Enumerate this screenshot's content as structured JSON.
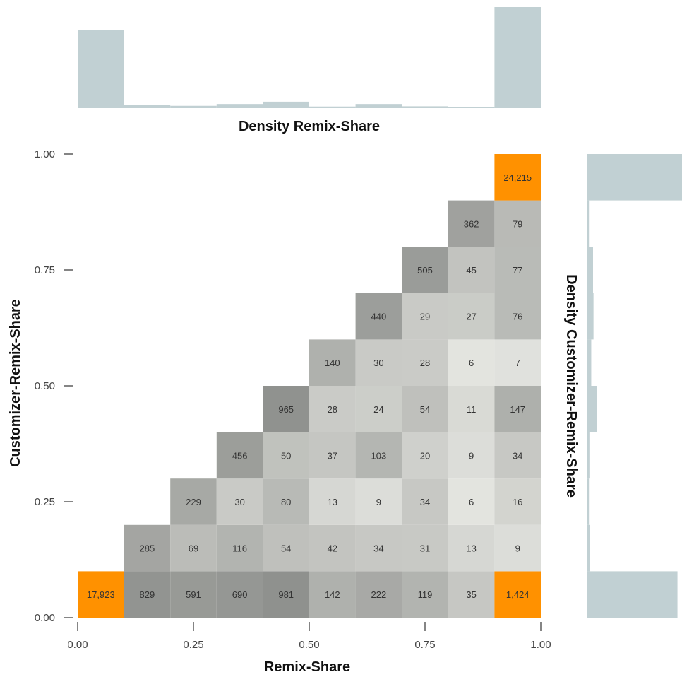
{
  "chart_data": {
    "type": "heatmap",
    "xlabel": "Remix-Share",
    "ylabel": "Customizer-Remix-Share",
    "top_hist_label": "Density Remix-Share",
    "right_hist_label": "Density Customizer-Remix-Share",
    "xlim": [
      0,
      1
    ],
    "ylim": [
      0,
      1
    ],
    "x_ticks": [
      "0.00",
      "0.25",
      "0.50",
      "0.75",
      "1.00"
    ],
    "y_ticks": [
      "0.00",
      "0.25",
      "0.50",
      "0.75",
      "1.00"
    ],
    "bins": 10,
    "cells": [
      {
        "col": 0,
        "row": 0,
        "count": 17923,
        "label": "17,923"
      },
      {
        "col": 1,
        "row": 0,
        "count": 829,
        "label": "829"
      },
      {
        "col": 2,
        "row": 0,
        "count": 591,
        "label": "591"
      },
      {
        "col": 3,
        "row": 0,
        "count": 690,
        "label": "690"
      },
      {
        "col": 4,
        "row": 0,
        "count": 981,
        "label": "981"
      },
      {
        "col": 5,
        "row": 0,
        "count": 142,
        "label": "142"
      },
      {
        "col": 6,
        "row": 0,
        "count": 222,
        "label": "222"
      },
      {
        "col": 7,
        "row": 0,
        "count": 119,
        "label": "119"
      },
      {
        "col": 8,
        "row": 0,
        "count": 35,
        "label": "35"
      },
      {
        "col": 9,
        "row": 0,
        "count": 1424,
        "label": "1,424"
      },
      {
        "col": 1,
        "row": 1,
        "count": 285,
        "label": "285"
      },
      {
        "col": 2,
        "row": 1,
        "count": 69,
        "label": "69"
      },
      {
        "col": 3,
        "row": 1,
        "count": 116,
        "label": "116"
      },
      {
        "col": 4,
        "row": 1,
        "count": 54,
        "label": "54"
      },
      {
        "col": 5,
        "row": 1,
        "count": 42,
        "label": "42"
      },
      {
        "col": 6,
        "row": 1,
        "count": 34,
        "label": "34"
      },
      {
        "col": 7,
        "row": 1,
        "count": 31,
        "label": "31"
      },
      {
        "col": 8,
        "row": 1,
        "count": 13,
        "label": "13"
      },
      {
        "col": 9,
        "row": 1,
        "count": 9,
        "label": "9"
      },
      {
        "col": 2,
        "row": 2,
        "count": 229,
        "label": "229"
      },
      {
        "col": 3,
        "row": 2,
        "count": 30,
        "label": "30"
      },
      {
        "col": 4,
        "row": 2,
        "count": 80,
        "label": "80"
      },
      {
        "col": 5,
        "row": 2,
        "count": 13,
        "label": "13"
      },
      {
        "col": 6,
        "row": 2,
        "count": 9,
        "label": "9"
      },
      {
        "col": 7,
        "row": 2,
        "count": 34,
        "label": "34"
      },
      {
        "col": 8,
        "row": 2,
        "count": 6,
        "label": "6"
      },
      {
        "col": 9,
        "row": 2,
        "count": 16,
        "label": "16"
      },
      {
        "col": 3,
        "row": 3,
        "count": 456,
        "label": "456"
      },
      {
        "col": 4,
        "row": 3,
        "count": 50,
        "label": "50"
      },
      {
        "col": 5,
        "row": 3,
        "count": 37,
        "label": "37"
      },
      {
        "col": 6,
        "row": 3,
        "count": 103,
        "label": "103"
      },
      {
        "col": 7,
        "row": 3,
        "count": 20,
        "label": "20"
      },
      {
        "col": 8,
        "row": 3,
        "count": 9,
        "label": "9"
      },
      {
        "col": 9,
        "row": 3,
        "count": 34,
        "label": "34"
      },
      {
        "col": 4,
        "row": 4,
        "count": 965,
        "label": "965"
      },
      {
        "col": 5,
        "row": 4,
        "count": 28,
        "label": "28"
      },
      {
        "col": 6,
        "row": 4,
        "count": 24,
        "label": "24"
      },
      {
        "col": 7,
        "row": 4,
        "count": 54,
        "label": "54"
      },
      {
        "col": 8,
        "row": 4,
        "count": 11,
        "label": "11"
      },
      {
        "col": 9,
        "row": 4,
        "count": 147,
        "label": "147"
      },
      {
        "col": 5,
        "row": 5,
        "count": 140,
        "label": "140"
      },
      {
        "col": 6,
        "row": 5,
        "count": 30,
        "label": "30"
      },
      {
        "col": 7,
        "row": 5,
        "count": 28,
        "label": "28"
      },
      {
        "col": 8,
        "row": 5,
        "count": 6,
        "label": "6"
      },
      {
        "col": 9,
        "row": 5,
        "count": 7,
        "label": "7"
      },
      {
        "col": 6,
        "row": 6,
        "count": 440,
        "label": "440"
      },
      {
        "col": 7,
        "row": 6,
        "count": 29,
        "label": "29"
      },
      {
        "col": 8,
        "row": 6,
        "count": 27,
        "label": "27"
      },
      {
        "col": 9,
        "row": 6,
        "count": 76,
        "label": "76"
      },
      {
        "col": 7,
        "row": 7,
        "count": 505,
        "label": "505"
      },
      {
        "col": 8,
        "row": 7,
        "count": 45,
        "label": "45"
      },
      {
        "col": 9,
        "row": 7,
        "count": 77,
        "label": "77"
      },
      {
        "col": 8,
        "row": 8,
        "count": 362,
        "label": "362"
      },
      {
        "col": 9,
        "row": 8,
        "count": 79,
        "label": "79"
      },
      {
        "col": 9,
        "row": 9,
        "count": 24215,
        "label": "24,215"
      }
    ],
    "top_hist_density": [
      3.4,
      0.15,
      0.1,
      0.18,
      0.28,
      0.07,
      0.18,
      0.08,
      0.06,
      4.4
    ],
    "right_hist_density": [
      2.0,
      0.07,
      0.05,
      0.06,
      0.22,
      0.1,
      0.15,
      0.14,
      0.05,
      2.1
    ],
    "colors": {
      "highlight": "#ff9100",
      "heat_low": "#e3e4df",
      "heat_high": "#8f918e",
      "hist_fill": "#c1d0d3"
    }
  }
}
